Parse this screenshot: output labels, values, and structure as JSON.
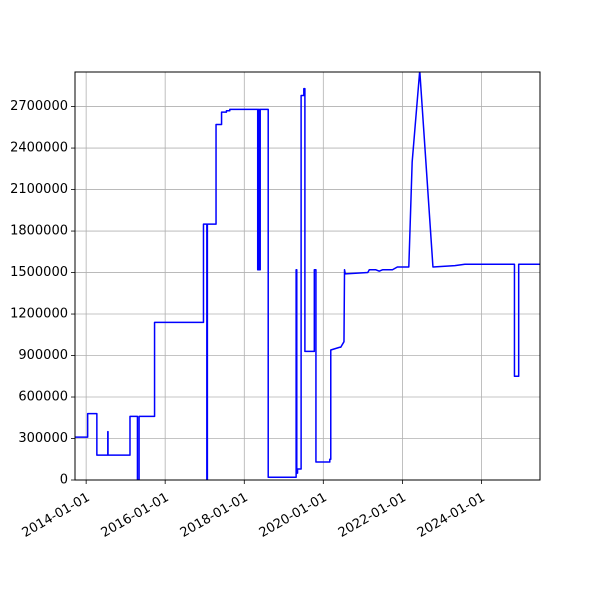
{
  "chart_data": {
    "type": "line",
    "title": "",
    "xlabel": "",
    "ylabel": "",
    "grid": true,
    "color": "#0000ff",
    "xlim": [
      "2013-09-20",
      "2025-06-25"
    ],
    "ylim": [
      0,
      2950000
    ],
    "x_ticks": [
      "2014-01-01",
      "2016-01-01",
      "2018-01-01",
      "2020-01-01",
      "2022-01-01",
      "2024-01-01"
    ],
    "y_ticks": [
      0,
      300000,
      600000,
      900000,
      1200000,
      1500000,
      1800000,
      2100000,
      2400000,
      2700000
    ],
    "x": [
      "2013-09-20",
      "2014-01-15",
      "2014-01-15",
      "2014-04-10",
      "2014-04-10",
      "2014-07-20",
      "2014-07-20",
      "2014-07-22",
      "2014-07-22",
      "2015-02-10",
      "2015-02-10",
      "2015-04-20",
      "2015-04-20",
      "2015-05-05",
      "2015-05-05",
      "2015-05-10",
      "2015-05-10",
      "2015-09-25",
      "2015-09-25",
      "2016-12-20",
      "2016-12-20",
      "2017-01-20",
      "2017-01-20",
      "2017-01-25",
      "2017-01-25",
      "2017-04-15",
      "2017-04-15",
      "2017-06-05",
      "2017-06-05",
      "2017-07-20",
      "2017-07-20",
      "2017-08-20",
      "2017-08-20",
      "2018-05-05",
      "2018-05-05",
      "2018-05-12",
      "2018-05-12",
      "2018-05-20",
      "2018-05-20",
      "2018-05-28",
      "2018-05-28",
      "2018-06-05",
      "2018-06-05",
      "2018-08-10",
      "2018-08-10",
      "2019-04-25",
      "2019-04-25",
      "2019-05-01",
      "2019-05-01",
      "2019-05-08",
      "2019-05-08",
      "2019-06-10",
      "2019-06-10",
      "2019-07-05",
      "2019-07-05",
      "2019-07-15",
      "2019-07-15",
      "2019-10-10",
      "2019-10-10",
      "2019-10-25",
      "2019-10-25",
      "2020-03-01",
      "2020-03-01",
      "2020-03-10",
      "2020-03-10",
      "2020-06-01",
      "2020-06-10",
      "2020-07-10",
      "2020-07-10",
      "2020-07-15",
      "2020-07-15",
      "2020-07-22",
      "2020-07-22",
      "2021-02-15",
      "2021-03-01",
      "2021-05-01",
      "2021-06-01",
      "2021-07-01",
      "2021-10-01",
      "2021-11-15",
      "2022-03-01",
      "2022-04-01",
      "2022-06-10",
      "2022-10-10",
      "2022-10-10",
      "2023-05-01",
      "2023-08-01",
      "2024-09-01",
      "2024-11-01",
      "2024-11-01",
      "2024-12-10",
      "2024-12-10",
      "2025-06-25"
    ],
    "values": [
      310000,
      310000,
      480000,
      480000,
      180000,
      180000,
      350000,
      350000,
      180000,
      180000,
      460000,
      460000,
      0,
      0,
      460000,
      460000,
      460000,
      460000,
      1140000,
      1140000,
      1850000,
      1850000,
      0,
      0,
      1850000,
      1850000,
      2570000,
      2570000,
      2660000,
      2660000,
      2670000,
      2670000,
      2680000,
      2680000,
      1520000,
      1520000,
      2680000,
      2680000,
      1520000,
      1520000,
      2680000,
      2680000,
      2680000,
      2680000,
      20000,
      20000,
      1520000,
      1520000,
      50000,
      50000,
      80000,
      80000,
      2780000,
      2780000,
      2830000,
      2830000,
      930000,
      930000,
      1520000,
      1520000,
      130000,
      130000,
      150000,
      150000,
      940000,
      960000,
      960000,
      1000000,
      1000000,
      1520000,
      1520000,
      1490000,
      1490000,
      1500000,
      1520000,
      1520000,
      1510000,
      1520000,
      1520000,
      1540000,
      1540000,
      2300000,
      2960000,
      1540000,
      1540000,
      1550000,
      1560000,
      1560000,
      1560000,
      750000,
      750000,
      1560000,
      1560000
    ]
  }
}
